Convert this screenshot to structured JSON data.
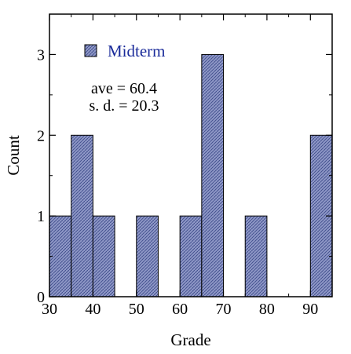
{
  "chart_data": {
    "type": "bar",
    "title": "",
    "xlabel": "Grade",
    "ylabel": "Count",
    "xlim": [
      30,
      95
    ],
    "ylim": [
      0,
      3.5
    ],
    "x_ticks": [
      30,
      40,
      50,
      60,
      70,
      80,
      90
    ],
    "y_ticks": [
      0,
      1,
      2,
      3
    ],
    "bin_width": 5,
    "grid": false,
    "legend_position": "top-left",
    "series": [
      {
        "name": "Midterm",
        "bins": [
          {
            "start": 30,
            "end": 35,
            "value": 1
          },
          {
            "start": 35,
            "end": 40,
            "value": 2
          },
          {
            "start": 40,
            "end": 45,
            "value": 1
          },
          {
            "start": 45,
            "end": 50,
            "value": 0
          },
          {
            "start": 50,
            "end": 55,
            "value": 1
          },
          {
            "start": 55,
            "end": 60,
            "value": 0
          },
          {
            "start": 60,
            "end": 65,
            "value": 1
          },
          {
            "start": 65,
            "end": 70,
            "value": 3
          },
          {
            "start": 70,
            "end": 75,
            "value": 0
          },
          {
            "start": 75,
            "end": 80,
            "value": 1
          },
          {
            "start": 80,
            "end": 85,
            "value": 0
          },
          {
            "start": 85,
            "end": 90,
            "value": 0
          },
          {
            "start": 90,
            "end": 95,
            "value": 2
          }
        ]
      }
    ],
    "annotations": [
      "ave = 60.4",
      "s. d. = 20.3"
    ]
  },
  "colors": {
    "bar_fill": "#8e97c6",
    "bar_hatch": "#3d4a8a",
    "bar_edge": "#000000",
    "legend_text": "#1a2b9a",
    "axis": "#000000"
  }
}
